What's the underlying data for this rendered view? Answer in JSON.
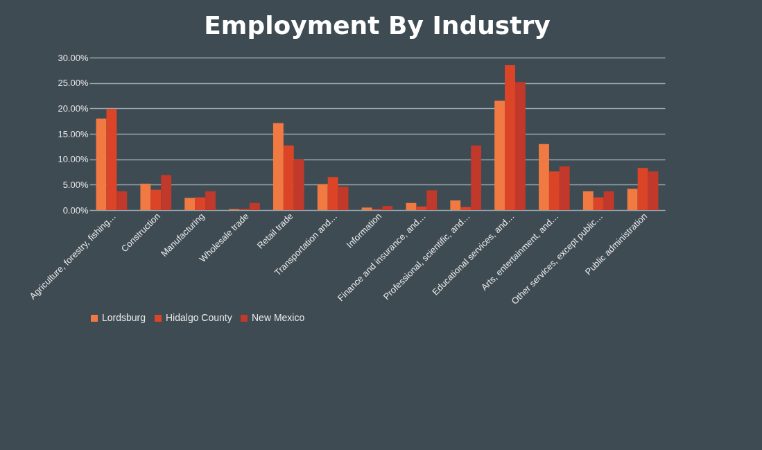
{
  "chart_data": {
    "type": "bar",
    "title": "Employment By Industry",
    "categories": [
      "Agriculture, forestry, fishing…",
      "Construction",
      "Manufacturing",
      "Wholesale trade",
      "Retail trade",
      "Transportation and…",
      "Information",
      "Finance and insurance, and…",
      "Professional, scientific, and…",
      "Educational services, and…",
      "Arts, entertainment, and…",
      "Other services, except public…",
      "Public administration"
    ],
    "series": [
      {
        "name": "Lordsburg",
        "color": "#f07a42",
        "values": [
          18.0,
          5.2,
          2.4,
          0.2,
          17.1,
          5.1,
          0.5,
          1.4,
          1.9,
          21.5,
          13.0,
          3.7,
          4.2
        ]
      },
      {
        "name": "Hidalgo County",
        "color": "#dc4428",
        "values": [
          19.9,
          4.0,
          2.5,
          0.2,
          12.7,
          6.5,
          0.2,
          0.7,
          0.6,
          28.5,
          7.6,
          2.5,
          8.3
        ]
      },
      {
        "name": "New Mexico",
        "color": "#c0392b",
        "values": [
          3.7,
          6.9,
          3.7,
          1.4,
          10.0,
          4.6,
          0.8,
          3.9,
          12.7,
          25.2,
          8.6,
          3.7,
          7.6
        ]
      }
    ],
    "ylim": [
      0,
      30
    ],
    "yticks": [
      {
        "value": 0,
        "label": "0.00%"
      },
      {
        "value": 5,
        "label": "5.00%"
      },
      {
        "value": 10,
        "label": "10.00%"
      },
      {
        "value": 15,
        "label": "15.00%"
      },
      {
        "value": 20,
        "label": "20.00%"
      },
      {
        "value": 25,
        "label": "25.00%"
      },
      {
        "value": 30,
        "label": "30.00%"
      }
    ],
    "grid": "y",
    "legend": "bottom"
  }
}
